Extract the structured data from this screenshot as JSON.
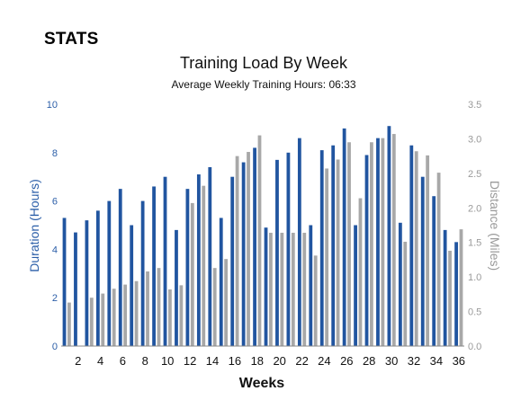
{
  "page": {
    "heading": "STATS"
  },
  "chart_data": {
    "type": "bar",
    "title": "Training Load By Week",
    "subtitle": "Average Weekly Training Hours: 06:33",
    "xlabel": "Weeks",
    "ylabel_left": "Duration (Hours)",
    "ylabel_right": "Distance (Miles)",
    "ylim_left": [
      0,
      10
    ],
    "ylim_right": [
      0,
      3.5
    ],
    "yticks_left": [
      "0",
      "2",
      "4",
      "6",
      "8",
      "10"
    ],
    "yticks_right": [
      "0.0",
      "0.5",
      "1.0",
      "1.5",
      "2.0",
      "2.5",
      "3.0",
      "3.5"
    ],
    "xticks": [
      "2",
      "4",
      "6",
      "8",
      "10",
      "12",
      "14",
      "16",
      "18",
      "20",
      "22",
      "24",
      "26",
      "28",
      "30",
      "32",
      "34",
      "36"
    ],
    "grid": false,
    "categories": [
      1,
      2,
      3,
      4,
      5,
      6,
      7,
      8,
      9,
      10,
      11,
      12,
      13,
      14,
      15,
      16,
      17,
      18,
      19,
      20,
      21,
      22,
      23,
      24,
      25,
      26,
      27,
      28,
      29,
      30,
      31,
      32,
      33,
      34,
      35,
      36
    ],
    "series": [
      {
        "color": "#2155a0",
        "axis": "left",
        "values": [
          5.3,
          4.7,
          5.2,
          5.6,
          6.0,
          6.5,
          5.0,
          6.0,
          6.6,
          7.0,
          4.8,
          6.5,
          7.1,
          7.4,
          5.3,
          7.0,
          7.6,
          8.2,
          4.9,
          7.7,
          8.0,
          8.6,
          5.0,
          8.1,
          8.3,
          9.0,
          5.0,
          7.9,
          8.6,
          9.1,
          5.1,
          8.3,
          7.0,
          6.2,
          4.8,
          4.3
        ]
      },
      {
        "color": "#a8a8a8",
        "axis": "right",
        "values": [
          0.63,
          0.0,
          0.7,
          0.76,
          0.83,
          0.89,
          0.94,
          1.08,
          1.13,
          0.82,
          0.88,
          2.07,
          2.32,
          1.13,
          1.26,
          2.75,
          2.81,
          3.05,
          1.64,
          1.64,
          1.64,
          1.64,
          1.31,
          2.57,
          2.7,
          2.95,
          2.14,
          2.95,
          3.01,
          3.07,
          1.51,
          2.82,
          2.76,
          2.51,
          1.38,
          1.69
        ]
      }
    ]
  }
}
